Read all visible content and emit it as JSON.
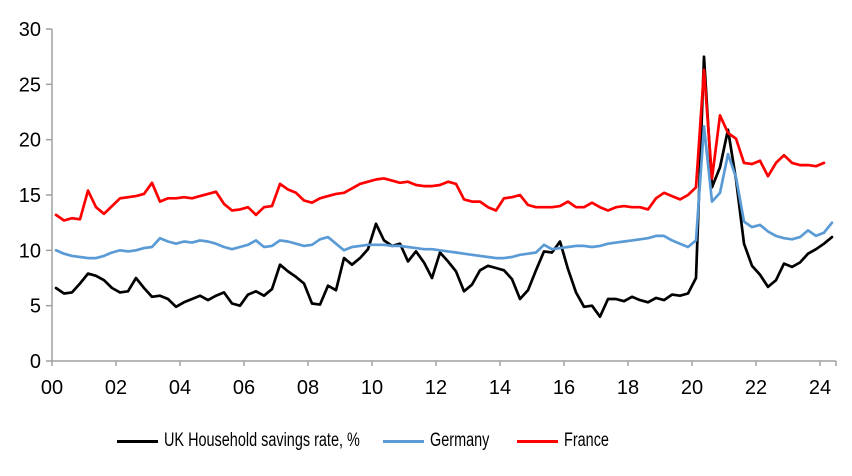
{
  "chart_data": {
    "type": "line",
    "title": "",
    "frequency": "quarterly",
    "start_period": "2000Q1",
    "x_axis": {
      "tick_labels": [
        "00",
        "02",
        "04",
        "06",
        "08",
        "10",
        "12",
        "14",
        "16",
        "18",
        "20",
        "22",
        "24"
      ],
      "years_per_tick": 2,
      "range": [
        2000,
        2024.5
      ]
    },
    "y_axis": {
      "ticks": [
        0,
        5,
        10,
        15,
        20,
        25,
        30
      ],
      "tick_labels": [
        "0",
        "5",
        "10",
        "15",
        "20",
        "25",
        "30"
      ],
      "range": [
        0,
        30
      ]
    },
    "grid": "off",
    "legend": {
      "position": "bottom"
    },
    "series": [
      {
        "id": "uk",
        "name": "UK Household savings rate, %",
        "color": "#000000",
        "values": [
          6.6,
          6.1,
          6.2,
          7.0,
          7.9,
          7.7,
          7.3,
          6.6,
          6.2,
          6.3,
          7.5,
          6.6,
          5.8,
          5.9,
          5.6,
          4.9,
          5.3,
          5.6,
          5.9,
          5.5,
          5.9,
          6.2,
          5.2,
          5.0,
          6.0,
          6.3,
          5.9,
          6.5,
          8.7,
          8.1,
          7.6,
          7.0,
          5.2,
          5.1,
          6.8,
          6.4,
          9.3,
          8.7,
          9.3,
          10.1,
          12.4,
          10.9,
          10.4,
          10.6,
          9.0,
          9.9,
          8.9,
          7.5,
          9.8,
          9.0,
          8.1,
          6.3,
          6.9,
          8.2,
          8.6,
          8.4,
          8.2,
          7.4,
          5.6,
          6.4,
          8.2,
          9.9,
          9.8,
          10.8,
          8.3,
          6.2,
          4.9,
          5.0,
          4.0,
          5.6,
          5.6,
          5.4,
          5.8,
          5.5,
          5.3,
          5.7,
          5.5,
          6.0,
          5.9,
          6.1,
          7.5,
          27.5,
          15.7,
          17.5,
          20.9,
          16.4,
          10.6,
          8.6,
          7.8,
          6.7,
          7.3,
          8.8,
          8.5,
          8.9,
          9.7,
          10.1,
          10.6,
          11.2
        ]
      },
      {
        "id": "germany",
        "name": "Germany",
        "color": "#5B9BD5",
        "values": [
          10.0,
          9.7,
          9.5,
          9.4,
          9.3,
          9.3,
          9.5,
          9.8,
          10.0,
          9.9,
          10.0,
          10.2,
          10.3,
          11.1,
          10.8,
          10.6,
          10.8,
          10.7,
          10.9,
          10.8,
          10.6,
          10.3,
          10.1,
          10.3,
          10.5,
          10.9,
          10.3,
          10.4,
          10.9,
          10.8,
          10.6,
          10.4,
          10.5,
          11.0,
          11.2,
          10.6,
          10.0,
          10.3,
          10.4,
          10.5,
          10.5,
          10.5,
          10.4,
          10.4,
          10.3,
          10.2,
          10.1,
          10.1,
          10.0,
          9.9,
          9.8,
          9.7,
          9.6,
          9.5,
          9.4,
          9.3,
          9.3,
          9.4,
          9.6,
          9.7,
          9.8,
          10.5,
          10.1,
          10.2,
          10.3,
          10.4,
          10.4,
          10.3,
          10.4,
          10.6,
          10.7,
          10.8,
          10.9,
          11.0,
          11.1,
          11.3,
          11.3,
          10.9,
          10.6,
          10.3,
          10.9,
          21.2,
          14.4,
          15.2,
          18.7,
          16.6,
          12.6,
          12.1,
          12.3,
          11.7,
          11.3,
          11.1,
          11.0,
          11.2,
          11.8,
          11.3,
          11.6,
          12.5
        ]
      },
      {
        "id": "france",
        "name": "France",
        "color": "#FF0000",
        "values": [
          13.2,
          12.7,
          12.9,
          12.8,
          15.4,
          13.9,
          13.3,
          14.0,
          14.7,
          14.8,
          14.9,
          15.1,
          16.1,
          14.4,
          14.7,
          14.7,
          14.8,
          14.7,
          14.9,
          15.1,
          15.3,
          14.2,
          13.6,
          13.7,
          13.9,
          13.2,
          13.9,
          14.0,
          16.0,
          15.5,
          15.2,
          14.5,
          14.3,
          14.7,
          14.9,
          15.1,
          15.2,
          15.6,
          16.0,
          16.2,
          16.4,
          16.5,
          16.3,
          16.1,
          16.2,
          15.9,
          15.8,
          15.8,
          15.9,
          16.2,
          16.0,
          14.6,
          14.4,
          14.4,
          13.9,
          13.6,
          14.7,
          14.8,
          15.0,
          14.1,
          13.9,
          13.9,
          13.9,
          14.0,
          14.4,
          13.9,
          13.9,
          14.3,
          13.9,
          13.6,
          13.9,
          14.0,
          13.9,
          13.9,
          13.7,
          14.7,
          15.2,
          14.9,
          14.6,
          15.0,
          15.7,
          26.3,
          16.5,
          22.2,
          20.6,
          20.1,
          17.9,
          17.8,
          18.1,
          16.7,
          17.9,
          18.6,
          17.9,
          17.7,
          17.7,
          17.6,
          17.9
        ]
      }
    ]
  },
  "colors": {
    "axis": "#A0A0A0",
    "text": "#000000",
    "background": "#FFFFFF"
  }
}
